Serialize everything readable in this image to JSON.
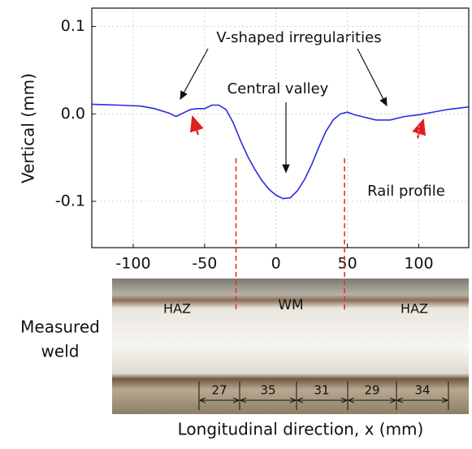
{
  "chart_data": {
    "type": "line",
    "xlabel": "Longitudinal direction, x (mm)",
    "ylabel": "Vertical (mm)",
    "xlim": [
      -129,
      135
    ],
    "ylim": [
      -0.153,
      0.121
    ],
    "xticks": [
      -100,
      -50,
      0,
      50,
      100
    ],
    "yticks": [
      0.1,
      {
        "value": 0,
        "label": "0.0"
      },
      -0.1
    ],
    "grid": true,
    "series": [
      {
        "name": "Rail profile",
        "color": "#2b2be6",
        "x": [
          -129,
          -110,
          -95,
          -85,
          -75,
          -70,
          -65,
          -60,
          -55,
          -50,
          -45,
          -40,
          -35,
          -30,
          -25,
          -20,
          -15,
          -10,
          -5,
          0,
          5,
          10,
          15,
          20,
          25,
          30,
          35,
          40,
          45,
          50,
          55,
          60,
          70,
          80,
          90,
          100,
          110,
          120,
          135
        ],
        "values": [
          0.011,
          0.01,
          0.009,
          0.006,
          0.001,
          -0.003,
          0.001,
          0.005,
          0.006,
          0.006,
          0.01,
          0.01,
          0.005,
          -0.01,
          -0.03,
          -0.048,
          -0.063,
          -0.076,
          -0.086,
          -0.093,
          -0.097,
          -0.096,
          -0.088,
          -0.075,
          -0.058,
          -0.038,
          -0.02,
          -0.007,
          0.0,
          0.002,
          -0.001,
          -0.003,
          -0.007,
          -0.007,
          -0.003,
          -0.001,
          0.002,
          0.005,
          0.008
        ]
      }
    ],
    "boundaries": [
      -28,
      48
    ],
    "boundary_color": "#e03030",
    "annotations": {
      "v_shaped": "V-shaped irregularities",
      "central": "Central valley"
    },
    "photo": {
      "label": [
        "Measured",
        "weld"
      ],
      "zones": [
        "HAZ",
        "WM",
        "HAZ"
      ],
      "dimensions": [
        27,
        35,
        31,
        29,
        34
      ]
    }
  }
}
